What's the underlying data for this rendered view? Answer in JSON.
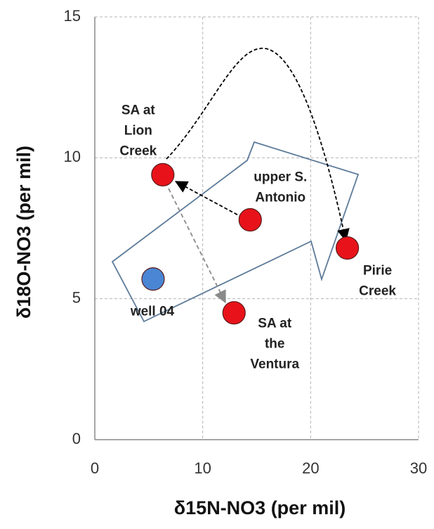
{
  "chart_data": {
    "type": "scatter",
    "xlabel": "δ15N-NO3 (per mil)",
    "ylabel": "δ18O-NO3 (per mil)",
    "xlim": [
      0,
      30
    ],
    "xticks": [
      0,
      10,
      20,
      30
    ],
    "ylim": [
      0,
      15
    ],
    "yticks": [
      0,
      5,
      10,
      15
    ],
    "grid": true,
    "points": [
      {
        "label": [
          "SA at",
          "Lion",
          "Creek"
        ],
        "x": 6.3,
        "y": 9.4,
        "color": "#e8131a"
      },
      {
        "label": [
          "upper S.",
          "Antonio"
        ],
        "x": 14.4,
        "y": 7.8,
        "color": "#e8131a"
      },
      {
        "label": [
          "Pirie",
          "Creek"
        ],
        "x": 23.4,
        "y": 6.8,
        "color": "#e8131a"
      },
      {
        "label": [
          "SA at",
          "the",
          "Ventura"
        ],
        "x": 12.9,
        "y": 4.5,
        "color": "#e8131a"
      },
      {
        "label": [
          "well 04"
        ],
        "x": 5.4,
        "y": 5.7,
        "color": "#4a86d4"
      }
    ]
  }
}
